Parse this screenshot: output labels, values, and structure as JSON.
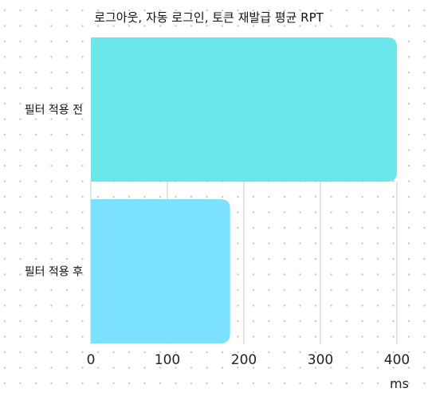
{
  "chart_data": {
    "type": "bar",
    "orientation": "horizontal",
    "title": "로그아웃, 자동 로그인, 토큰 재발급 평균 RPT",
    "categories": [
      "필터 적용 전",
      "필터 적용 후"
    ],
    "values": [
      400,
      182
    ],
    "xlabel": "ms",
    "ylabel": "",
    "xlim": [
      0,
      400
    ],
    "xticks": [
      0,
      100,
      200,
      300,
      400
    ],
    "grid": true,
    "legend": "none",
    "colors": [
      "#6be6ea",
      "#7de2ff"
    ],
    "grid_color": "#c8c8c8",
    "dot_color": "#c9c9c9"
  }
}
